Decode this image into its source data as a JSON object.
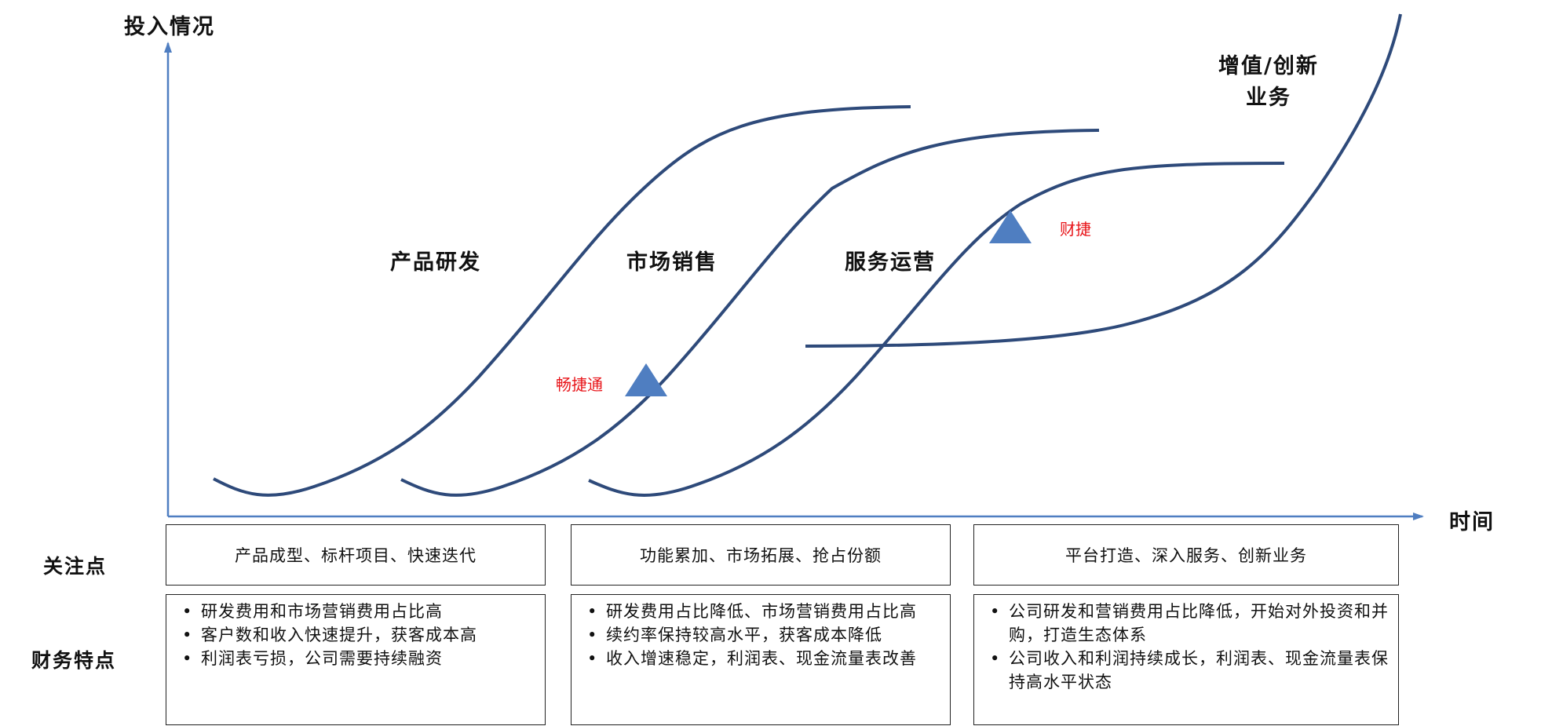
{
  "axes": {
    "y_title": "投入情况",
    "x_title": "时间"
  },
  "phases": [
    {
      "label": "产品研发"
    },
    {
      "label": "市场销售"
    },
    {
      "label": "服务运营"
    }
  ],
  "growth_curve": {
    "line1": "增值/创新",
    "line2": "业务"
  },
  "markers": [
    {
      "label": "畅捷通",
      "shape": "triangle",
      "color": "#4f7ec1"
    },
    {
      "label": "财捷",
      "shape": "triangle",
      "color": "#4f7ec1"
    }
  ],
  "colors": {
    "curve": "#2e4a7a",
    "axis": "#4f7ec1",
    "marker_label": "#e8161b"
  },
  "rows": {
    "focus_label": "关注点",
    "finance_label": "财务特点"
  },
  "focus": [
    "产品成型、标杆项目、快速迭代",
    "功能累加、市场拓展、抢占份额",
    "平台打造、深入服务、创新业务"
  ],
  "finance": [
    {
      "items": [
        "研发费用和市场营销费用占比高",
        "客户数和收入快速提升，获客成本高",
        "利润表亏损，公司需要持续融资"
      ]
    },
    {
      "items": [
        "研发费用占比降低、市场营销费用占比高",
        "续约率保持较高水平，获客成本降低",
        "收入增速稳定，利润表、现金流量表改善"
      ]
    },
    {
      "items": [
        "公司研发和营销费用占比降低，开始对外投资和并购，打造生态体系",
        "公司收入和利润持续成长，利润表、现金流量表保持高水平状态"
      ]
    }
  ]
}
